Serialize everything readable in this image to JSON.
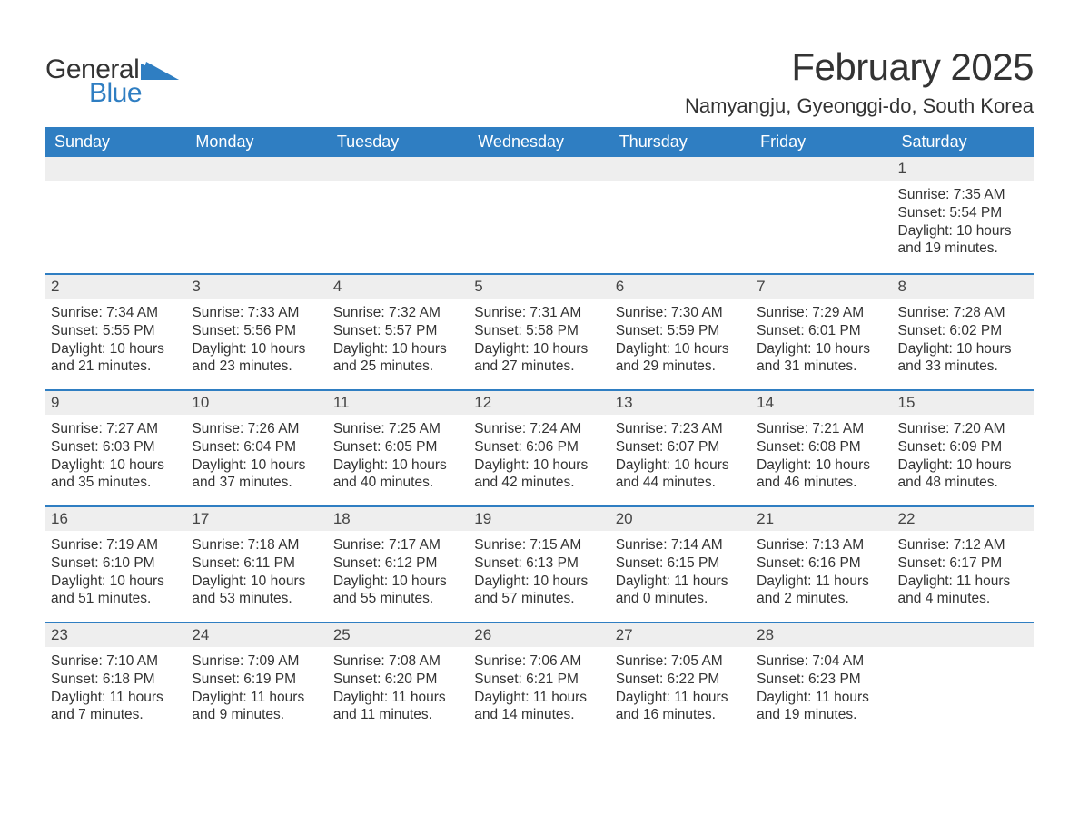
{
  "logo": {
    "part1": "General",
    "part2": "Blue",
    "brand_color": "#2f7ec2"
  },
  "title": "February 2025",
  "location": "Namyangju, Gyeonggi-do, South Korea",
  "colors": {
    "header_bg": "#2f7ec2",
    "header_text": "#ffffff",
    "daynum_bg": "#eeeeee",
    "border_top": "#2f7ec2",
    "body_text": "#333333",
    "page_bg": "#ffffff"
  },
  "typography": {
    "title_fontsize": 42,
    "location_fontsize": 22,
    "header_fontsize": 18,
    "daynum_fontsize": 17,
    "body_fontsize": 15.5,
    "font_family": "Segoe UI"
  },
  "layout": {
    "columns": 7,
    "rows": 5,
    "first_day_column": 6
  },
  "weekdays": [
    "Sunday",
    "Monday",
    "Tuesday",
    "Wednesday",
    "Thursday",
    "Friday",
    "Saturday"
  ],
  "labels": {
    "sunrise": "Sunrise",
    "sunset": "Sunset",
    "daylight": "Daylight"
  },
  "days": [
    {
      "n": 1,
      "sunrise": "7:35 AM",
      "sunset": "5:54 PM",
      "daylight": "10 hours and 19 minutes."
    },
    {
      "n": 2,
      "sunrise": "7:34 AM",
      "sunset": "5:55 PM",
      "daylight": "10 hours and 21 minutes."
    },
    {
      "n": 3,
      "sunrise": "7:33 AM",
      "sunset": "5:56 PM",
      "daylight": "10 hours and 23 minutes."
    },
    {
      "n": 4,
      "sunrise": "7:32 AM",
      "sunset": "5:57 PM",
      "daylight": "10 hours and 25 minutes."
    },
    {
      "n": 5,
      "sunrise": "7:31 AM",
      "sunset": "5:58 PM",
      "daylight": "10 hours and 27 minutes."
    },
    {
      "n": 6,
      "sunrise": "7:30 AM",
      "sunset": "5:59 PM",
      "daylight": "10 hours and 29 minutes."
    },
    {
      "n": 7,
      "sunrise": "7:29 AM",
      "sunset": "6:01 PM",
      "daylight": "10 hours and 31 minutes."
    },
    {
      "n": 8,
      "sunrise": "7:28 AM",
      "sunset": "6:02 PM",
      "daylight": "10 hours and 33 minutes."
    },
    {
      "n": 9,
      "sunrise": "7:27 AM",
      "sunset": "6:03 PM",
      "daylight": "10 hours and 35 minutes."
    },
    {
      "n": 10,
      "sunrise": "7:26 AM",
      "sunset": "6:04 PM",
      "daylight": "10 hours and 37 minutes."
    },
    {
      "n": 11,
      "sunrise": "7:25 AM",
      "sunset": "6:05 PM",
      "daylight": "10 hours and 40 minutes."
    },
    {
      "n": 12,
      "sunrise": "7:24 AM",
      "sunset": "6:06 PM",
      "daylight": "10 hours and 42 minutes."
    },
    {
      "n": 13,
      "sunrise": "7:23 AM",
      "sunset": "6:07 PM",
      "daylight": "10 hours and 44 minutes."
    },
    {
      "n": 14,
      "sunrise": "7:21 AM",
      "sunset": "6:08 PM",
      "daylight": "10 hours and 46 minutes."
    },
    {
      "n": 15,
      "sunrise": "7:20 AM",
      "sunset": "6:09 PM",
      "daylight": "10 hours and 48 minutes."
    },
    {
      "n": 16,
      "sunrise": "7:19 AM",
      "sunset": "6:10 PM",
      "daylight": "10 hours and 51 minutes."
    },
    {
      "n": 17,
      "sunrise": "7:18 AM",
      "sunset": "6:11 PM",
      "daylight": "10 hours and 53 minutes."
    },
    {
      "n": 18,
      "sunrise": "7:17 AM",
      "sunset": "6:12 PM",
      "daylight": "10 hours and 55 minutes."
    },
    {
      "n": 19,
      "sunrise": "7:15 AM",
      "sunset": "6:13 PM",
      "daylight": "10 hours and 57 minutes."
    },
    {
      "n": 20,
      "sunrise": "7:14 AM",
      "sunset": "6:15 PM",
      "daylight": "11 hours and 0 minutes."
    },
    {
      "n": 21,
      "sunrise": "7:13 AM",
      "sunset": "6:16 PM",
      "daylight": "11 hours and 2 minutes."
    },
    {
      "n": 22,
      "sunrise": "7:12 AM",
      "sunset": "6:17 PM",
      "daylight": "11 hours and 4 minutes."
    },
    {
      "n": 23,
      "sunrise": "7:10 AM",
      "sunset": "6:18 PM",
      "daylight": "11 hours and 7 minutes."
    },
    {
      "n": 24,
      "sunrise": "7:09 AM",
      "sunset": "6:19 PM",
      "daylight": "11 hours and 9 minutes."
    },
    {
      "n": 25,
      "sunrise": "7:08 AM",
      "sunset": "6:20 PM",
      "daylight": "11 hours and 11 minutes."
    },
    {
      "n": 26,
      "sunrise": "7:06 AM",
      "sunset": "6:21 PM",
      "daylight": "11 hours and 14 minutes."
    },
    {
      "n": 27,
      "sunrise": "7:05 AM",
      "sunset": "6:22 PM",
      "daylight": "11 hours and 16 minutes."
    },
    {
      "n": 28,
      "sunrise": "7:04 AM",
      "sunset": "6:23 PM",
      "daylight": "11 hours and 19 minutes."
    }
  ]
}
